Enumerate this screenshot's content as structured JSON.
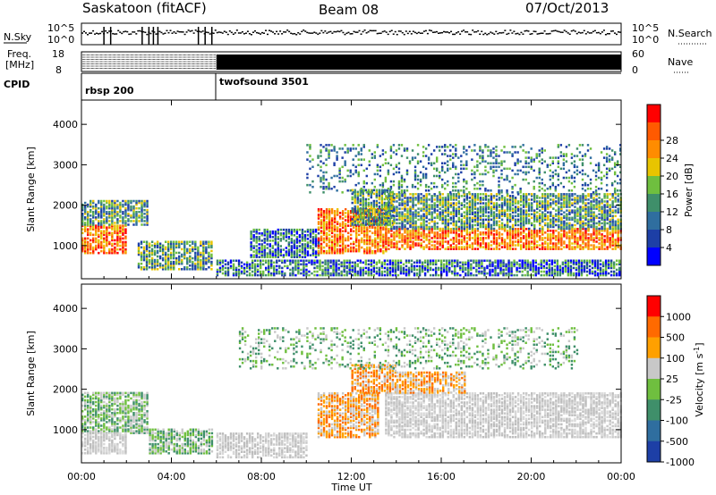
{
  "header": {
    "station": "Saskatoon (fitACF)",
    "beam": "Beam 08",
    "date": "07/Oct/2013"
  },
  "top_panels": {
    "nsky_label": "N.Sky",
    "nsky_ticks": [
      "10^5",
      "10^0"
    ],
    "nsearch_label": "N.Search",
    "nsearch_ticks": [
      "10^5",
      "10^0"
    ],
    "freq_label_1": "Freq.",
    "freq_label_2": "[MHz]",
    "freq_ticks": [
      "18",
      "8"
    ],
    "nave_label": "Nave",
    "nave_ticks": [
      "60",
      "0"
    ],
    "cpid_label": "CPID",
    "cpid_segments": [
      {
        "name": "rbsp 200",
        "start_hour": 0,
        "end_hour": 6
      },
      {
        "name": "twofsound 3501",
        "start_hour": 6,
        "end_hour": 24
      }
    ]
  },
  "chart_data": [
    {
      "type": "heatmap",
      "name": "Power",
      "ylabel": "Slant Range [km]",
      "y_ticks": [
        1000,
        2000,
        3000,
        4000
      ],
      "ylim": [
        180,
        4600
      ],
      "x_ticks": [
        "00:00",
        "04:00",
        "08:00",
        "12:00",
        "16:00",
        "20:00",
        "00:00"
      ],
      "xlim_hours": [
        0,
        24
      ],
      "colorbar_label": "Power [dB]",
      "colorbar_ticks": [
        4,
        8,
        12,
        16,
        20,
        24,
        28
      ],
      "colorbar_colors": [
        "#0000ff",
        "#1d3fa6",
        "#2f6e9f",
        "#3f8f6a",
        "#6fbf3f",
        "#e8c400",
        "#ff8c00",
        "#ff5a00",
        "#ff0000"
      ],
      "regions": [
        {
          "t0": 0.0,
          "t1": 2.0,
          "r0": 800,
          "r1": 1500,
          "level": "high"
        },
        {
          "t0": 0.0,
          "t1": 3.0,
          "r0": 1500,
          "r1": 2100,
          "level": "mid"
        },
        {
          "t0": 2.5,
          "t1": 5.8,
          "r0": 400,
          "r1": 1100,
          "level": "mid"
        },
        {
          "t0": 6.0,
          "t1": 24.0,
          "r0": 250,
          "r1": 650,
          "level": "low"
        },
        {
          "t0": 7.5,
          "t1": 10.5,
          "r0": 700,
          "r1": 1400,
          "level": "low"
        },
        {
          "t0": 10.5,
          "t1": 13.5,
          "r0": 800,
          "r1": 1900,
          "level": "high"
        },
        {
          "t0": 12.0,
          "t1": 13.8,
          "r0": 1500,
          "r1": 2400,
          "level": "mid"
        },
        {
          "t0": 13.5,
          "t1": 24.0,
          "r0": 900,
          "r1": 1400,
          "level": "high"
        },
        {
          "t0": 13.5,
          "t1": 24.0,
          "r0": 1400,
          "r1": 2300,
          "level": "mid"
        },
        {
          "t0": 10.0,
          "t1": 24.0,
          "r0": 2300,
          "r1": 3500,
          "level": "sparse"
        }
      ]
    },
    {
      "type": "heatmap",
      "name": "Velocity",
      "ylabel": "Slant Range [km]",
      "y_ticks": [
        1000,
        2000,
        3000,
        4000
      ],
      "ylim": [
        180,
        4600
      ],
      "x_ticks": [
        "00:00",
        "04:00",
        "08:00",
        "12:00",
        "16:00",
        "20:00",
        "00:00"
      ],
      "xlabel": "Time UT",
      "xlim_hours": [
        0,
        24
      ],
      "colorbar_label": "Velocity [m s^-1]",
      "colorbar_ticks": [
        1000,
        500,
        100,
        25,
        -25,
        -100,
        -500,
        -1000
      ],
      "colorbar_colors": [
        "#1d3fa6",
        "#2f6e9f",
        "#3f8f6a",
        "#6fbf3f",
        "#c8c8c8",
        "#ffa000",
        "#ff6a00",
        "#ff0000"
      ],
      "regions": [
        {
          "t0": 0.0,
          "t1": 3.0,
          "r0": 900,
          "r1": 1900,
          "level": "green"
        },
        {
          "t0": 0.0,
          "t1": 2.0,
          "r0": 400,
          "r1": 900,
          "level": "grey"
        },
        {
          "t0": 3.0,
          "t1": 5.8,
          "r0": 400,
          "r1": 1000,
          "level": "green"
        },
        {
          "t0": 6.0,
          "t1": 10.0,
          "r0": 300,
          "r1": 900,
          "level": "grey"
        },
        {
          "t0": 10.5,
          "t1": 13.2,
          "r0": 800,
          "r1": 1900,
          "level": "orange"
        },
        {
          "t0": 12.0,
          "t1": 14.0,
          "r0": 1900,
          "r1": 2600,
          "level": "orange"
        },
        {
          "t0": 13.5,
          "t1": 24.0,
          "r0": 800,
          "r1": 1900,
          "level": "grey"
        },
        {
          "t0": 14.0,
          "t1": 17.0,
          "r0": 1900,
          "r1": 2400,
          "level": "orange"
        },
        {
          "t0": 7.0,
          "t1": 22.0,
          "r0": 2500,
          "r1": 3500,
          "level": "sparse"
        }
      ]
    }
  ],
  "colors": {
    "axis": "#000000",
    "background": "#ffffff"
  }
}
